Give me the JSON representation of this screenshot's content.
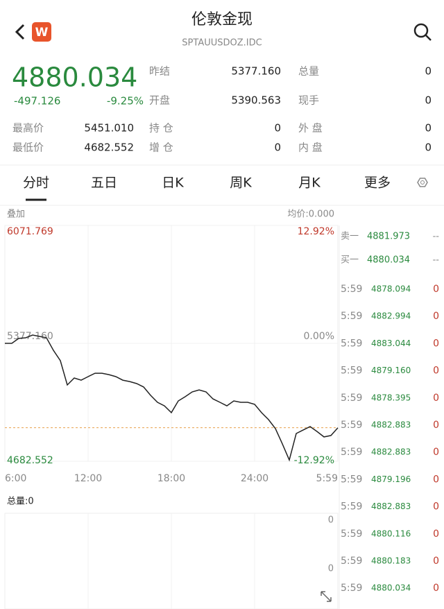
{
  "header": {
    "logo": "W",
    "title": "伦敦金现",
    "code": "SPTAUUSDOZ.IDC"
  },
  "quote": {
    "price": 4880.034,
    "change": -497.126,
    "change_pct": "-9.25%",
    "stats": [
      [
        "昨结",
        "5377.160"
      ],
      [
        "总量",
        "0"
      ],
      [
        "开盘",
        "5390.563"
      ],
      [
        "现手",
        "0"
      ],
      [
        "最高价",
        "5451.010"
      ],
      [
        "持 仓",
        "0"
      ],
      [
        "外 盘",
        "0"
      ],
      [
        "最低价",
        "4682.552"
      ],
      [
        "增 仓",
        "0"
      ],
      [
        "内 盘",
        "0"
      ]
    ]
  },
  "tabs": [
    "分时",
    "五日",
    "日K",
    "周K",
    "月K",
    "更多"
  ],
  "chart_data": {
    "type": "line",
    "overlay_label": "叠加",
    "avg_label": "均价:0.000",
    "categories": [
      "6:00",
      null,
      null,
      null,
      null,
      null,
      null,
      null,
      null,
      null,
      null,
      null,
      "12:00",
      null,
      null,
      null,
      null,
      null,
      null,
      null,
      null,
      null,
      null,
      null,
      "18:00",
      null,
      null,
      null,
      null,
      null,
      null,
      null,
      null,
      null,
      null,
      null,
      "24:00",
      null,
      null,
      null,
      null,
      null,
      null,
      null,
      null,
      null,
      null,
      null,
      "5:59"
    ],
    "series": [
      {
        "color": "#222222",
        "values": [
          5377,
          5377,
          5406,
          5410,
          5426,
          5418,
          5410,
          5336,
          5275,
          5132,
          5173,
          5160,
          5181,
          5201,
          5201,
          5193,
          5181,
          5160,
          5152,
          5140,
          5120,
          5071,
          5030,
          5009,
          4969,
          5038,
          5063,
          5091,
          5103,
          5091,
          5050,
          5030,
          5009,
          5038,
          5030,
          5030,
          5018,
          4969,
          4928,
          4875,
          4785,
          4690,
          4846,
          4867,
          4887,
          4858,
          4826,
          4834,
          4880.034
        ]
      }
    ],
    "ylim": [
      4682.552,
      6071.769
    ],
    "yticks": [
      {
        "value": 6071.769,
        "label": "6071.769"
      },
      {
        "value": 5377.16,
        "label": "5377.160"
      },
      {
        "value": 4682.552,
        "label": "4682.552"
      }
    ],
    "y2lim": [
      -12.92,
      12.92
    ],
    "y2ticks": [
      {
        "value": 12.92,
        "label": "12.92%"
      },
      {
        "value": 0,
        "label": "0.00%"
      },
      {
        "value": -12.92,
        "label": "-12.92%"
      }
    ],
    "volume": {
      "label": "总量:0",
      "ticks": [
        "0",
        "0"
      ]
    }
  },
  "order_book": {
    "quotes": [
      [
        "卖一",
        "4881.973",
        "--"
      ],
      [
        "买一",
        "4880.034",
        "--"
      ]
    ],
    "trades": [
      [
        "5:59",
        "4878.094",
        "0"
      ],
      [
        "5:59",
        "4882.994",
        "0"
      ],
      [
        "5:59",
        "4883.044",
        "0"
      ],
      [
        "5:59",
        "4879.160",
        "0"
      ],
      [
        "5:59",
        "4878.395",
        "0"
      ],
      [
        "5:59",
        "4882.883",
        "0"
      ],
      [
        "5:59",
        "4882.883",
        "0"
      ],
      [
        "5:59",
        "4879.196",
        "0"
      ],
      [
        "5:59",
        "4882.883",
        "0"
      ],
      [
        "5:59",
        "4880.116",
        "0"
      ],
      [
        "5:59",
        "4880.183",
        "0"
      ],
      [
        "5:59",
        "4880.034",
        "0"
      ]
    ]
  }
}
